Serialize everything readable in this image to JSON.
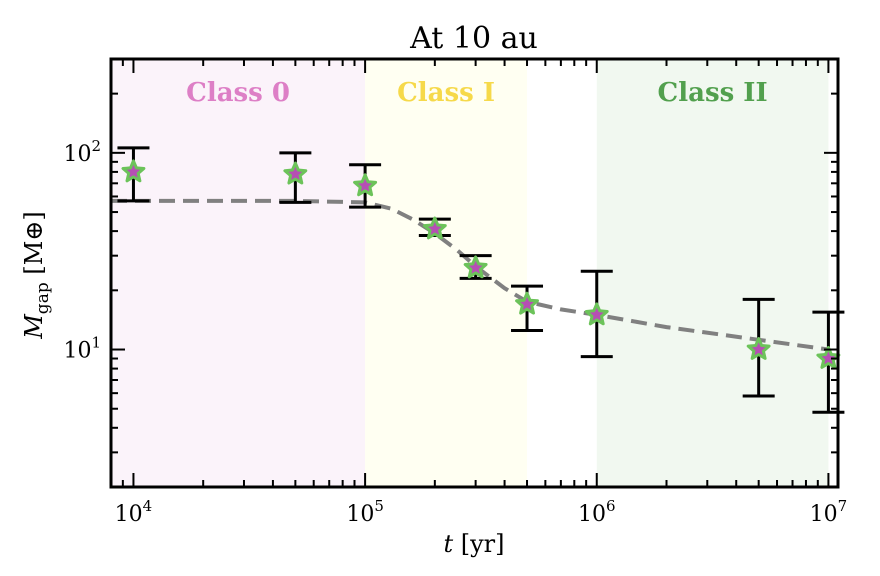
{
  "chart_data": {
    "type": "scatter",
    "title": "At 10 au",
    "xlabel_var": "t",
    "xlabel_unit": " [yr]",
    "ylabel_var": "M",
    "ylabel_sub": "gap",
    "ylabel_unit": " [M⊕]",
    "x_scale": "log",
    "y_scale": "log",
    "xlim": [
      8000,
      11000000
    ],
    "ylim": [
      2,
      300
    ],
    "x_ticks": [
      {
        "base": "10",
        "exp": "4",
        "value": 10000
      },
      {
        "base": "10",
        "exp": "5",
        "value": 100000
      },
      {
        "base": "10",
        "exp": "6",
        "value": 1000000
      },
      {
        "base": "10",
        "exp": "7",
        "value": 10000000
      }
    ],
    "y_ticks": [
      {
        "base": "10",
        "exp": "1",
        "value": 10
      },
      {
        "base": "10",
        "exp": "2",
        "value": 100
      }
    ],
    "grid": false,
    "regions": [
      {
        "label": "Class 0",
        "x0": 8000,
        "x1": 100000,
        "fill": "#fbf3fa",
        "text_color": "#dd7fc6"
      },
      {
        "label": "Class I",
        "x0": 100000,
        "x1": 500000,
        "fill": "#fffff2",
        "text_color": "#f6d94a"
      },
      {
        "label": "Class II",
        "x0": 1000000,
        "x1": 10000000,
        "fill": "#f1f8f0",
        "text_color": "#52a04e"
      }
    ],
    "points": [
      {
        "x": 10000,
        "y": 80,
        "ylo": 57,
        "yhi": 106
      },
      {
        "x": 50000,
        "y": 78,
        "ylo": 56,
        "yhi": 100
      },
      {
        "x": 100000,
        "y": 68,
        "ylo": 53,
        "yhi": 87
      },
      {
        "x": 200000,
        "y": 41,
        "ylo": 38,
        "yhi": 46
      },
      {
        "x": 300000,
        "y": 26,
        "ylo": 23,
        "yhi": 30
      },
      {
        "x": 500000,
        "y": 17,
        "ylo": 12.5,
        "yhi": 21
      },
      {
        "x": 1000000,
        "y": 15,
        "ylo": 9.2,
        "yhi": 25
      },
      {
        "x": 5000000,
        "y": 10,
        "ylo": 5.8,
        "yhi": 18
      },
      {
        "x": 10000000,
        "y": 9,
        "ylo": 4.8,
        "yhi": 15.5
      }
    ],
    "fit_curve": {
      "x": [
        8000,
        10000,
        20000,
        50000,
        100000,
        130000,
        160000,
        200000,
        250000,
        300000,
        400000,
        500000,
        700000,
        1000000,
        2000000,
        5000000,
        10000000
      ],
      "y": [
        57,
        57,
        57,
        57,
        56,
        52,
        46,
        39,
        32,
        26.5,
        20.5,
        17.5,
        16,
        15,
        13,
        11.2,
        10
      ],
      "color": "#808080"
    },
    "marker": {
      "fill": "#b64fb4",
      "stroke": "#6cc35a"
    },
    "errorbar_color": "#000000"
  }
}
